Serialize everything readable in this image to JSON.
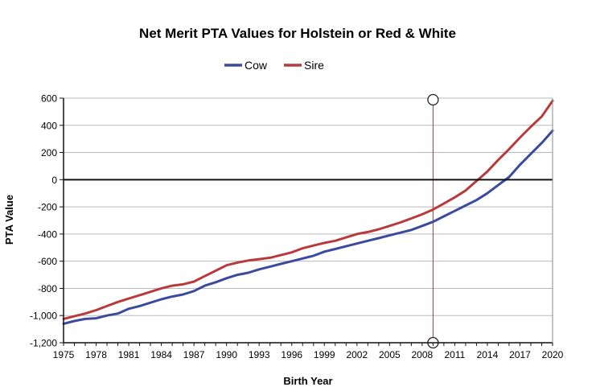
{
  "chart_data": {
    "type": "line",
    "title": "Net Merit PTA Values for Holstein or Red & White",
    "xlabel": "Birth Year",
    "ylabel": "PTA Value",
    "xlim": [
      1975,
      2020
    ],
    "ylim": [
      -1200,
      600
    ],
    "x_ticks": [
      {
        "value": 1975,
        "label": "1975"
      },
      {
        "value": 1978,
        "label": "1978"
      },
      {
        "value": 1981,
        "label": "1981"
      },
      {
        "value": 1984,
        "label": "1984"
      },
      {
        "value": 1987,
        "label": "1987"
      },
      {
        "value": 1990,
        "label": "1990"
      },
      {
        "value": 1993,
        "label": "1993"
      },
      {
        "value": 1996,
        "label": "1996"
      },
      {
        "value": 1999,
        "label": "1999"
      },
      {
        "value": 2002,
        "label": "2002"
      },
      {
        "value": 2005,
        "label": "2005"
      },
      {
        "value": 2008,
        "label": "2008"
      },
      {
        "value": 2011,
        "label": "2011"
      },
      {
        "value": 2014,
        "label": "2014"
      },
      {
        "value": 2017,
        "label": "2017"
      },
      {
        "value": 2020,
        "label": "2020"
      }
    ],
    "y_ticks": [
      {
        "value": 600,
        "label": "600"
      },
      {
        "value": 400,
        "label": "400"
      },
      {
        "value": 200,
        "label": "200"
      },
      {
        "value": 0,
        "label": "0"
      },
      {
        "value": -200,
        "label": "-200"
      },
      {
        "value": -400,
        "label": "-400"
      },
      {
        "value": -600,
        "label": "-600"
      },
      {
        "value": -800,
        "label": "-800"
      },
      {
        "value": -1000,
        "label": "-1,000"
      },
      {
        "value": -1200,
        "label": "-1,200"
      }
    ],
    "grid": "horizontal",
    "zero_line": 0,
    "legend_position": "top-center",
    "reference_line_x": 2009,
    "x": [
      1975,
      1976,
      1977,
      1978,
      1979,
      1980,
      1981,
      1982,
      1983,
      1984,
      1985,
      1986,
      1987,
      1988,
      1989,
      1990,
      1991,
      1992,
      1993,
      1994,
      1995,
      1996,
      1997,
      1998,
      1999,
      2000,
      2001,
      2002,
      2003,
      2004,
      2005,
      2006,
      2007,
      2008,
      2009,
      2010,
      2011,
      2012,
      2013,
      2014,
      2015,
      2016,
      2017,
      2018,
      2019,
      2020
    ],
    "series": [
      {
        "name": "Cow",
        "color": "#3b4a9c",
        "values": [
          -1060,
          -1040,
          -1025,
          -1020,
          -1000,
          -985,
          -950,
          -930,
          -905,
          -880,
          -860,
          -845,
          -820,
          -780,
          -755,
          -725,
          -700,
          -685,
          -660,
          -640,
          -620,
          -600,
          -580,
          -560,
          -530,
          -510,
          -490,
          -470,
          -450,
          -430,
          -410,
          -390,
          -370,
          -340,
          -310,
          -270,
          -230,
          -190,
          -150,
          -100,
          -40,
          20,
          110,
          190,
          270,
          360
        ]
      },
      {
        "name": "Sire",
        "color": "#b93a3c",
        "values": [
          -1025,
          -1005,
          -985,
          -960,
          -930,
          -900,
          -875,
          -850,
          -825,
          -800,
          -780,
          -770,
          -750,
          -710,
          -670,
          -630,
          -610,
          -595,
          -585,
          -575,
          -555,
          -535,
          -505,
          -485,
          -465,
          -450,
          -425,
          -400,
          -385,
          -365,
          -340,
          -315,
          -285,
          -255,
          -220,
          -175,
          -130,
          -80,
          -10,
          60,
          145,
          225,
          310,
          390,
          465,
          580
        ]
      }
    ]
  }
}
